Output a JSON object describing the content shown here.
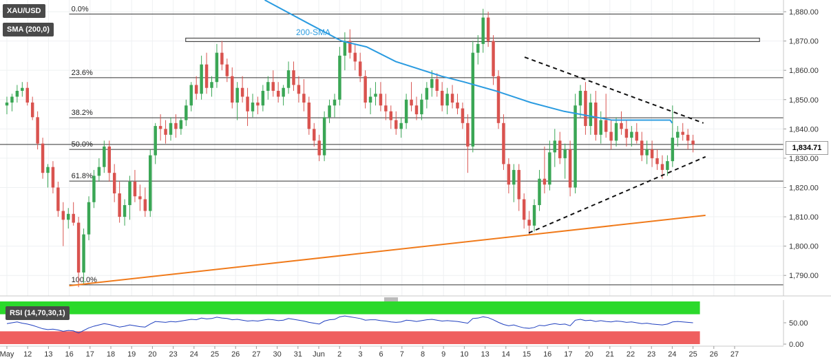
{
  "instrument": {
    "symbol": "XAU/USD",
    "indicator": "SMA (200,0)",
    "rsi_label": "RSI (14,70,30,1)",
    "sma_annotation": "200-SMA"
  },
  "last_price": "1,834.71",
  "colors": {
    "up": "#3aa655",
    "down": "#d9534f",
    "sma": "#2a9be0",
    "trend": "#f07a1a",
    "rsi_line": "#1f3fbf",
    "rsi_over": "#2bd92b",
    "rsi_under": "#ef5f5f"
  },
  "chart_data": [
    {
      "type": "candlestick",
      "title": "XAU/USD",
      "x_ticks": [
        "May",
        "12",
        "13",
        "16",
        "17",
        "18",
        "19",
        "20",
        "23",
        "24",
        "25",
        "26",
        "27",
        "30",
        "31",
        "Jun",
        "2",
        "3",
        "6",
        "7",
        "8",
        "9",
        "10",
        "13",
        "14",
        "15",
        "16",
        "17",
        "20",
        "21",
        "22",
        "23",
        "24",
        "25",
        "26",
        "27"
      ],
      "y_ticks": [
        "1,790.00",
        "1,800.00",
        "1,810.00",
        "1,820.00",
        "1,830.00",
        "1,840.00",
        "1,850.00",
        "1,860.00",
        "1,870.00",
        "1,880.00"
      ],
      "ylim": [
        1783,
        1884
      ],
      "fibonacci": [
        {
          "label": "0.0%",
          "value": 1879.2
        },
        {
          "label": "23.6%",
          "value": 1857.5
        },
        {
          "label": "38.2%",
          "value": 1843.8
        },
        {
          "label": "50.0%",
          "value": 1833.0
        },
        {
          "label": "61.8%",
          "value": 1822.2
        },
        {
          "label": "100.0%",
          "value": 1786.8
        }
      ],
      "resistance_zone": {
        "x": [
          8.6,
          36.2
        ],
        "low": 1869.8,
        "high": 1871.0
      },
      "sma_200": {
        "x": [
          12.4,
          14.5,
          16.1,
          17.3,
          18.7,
          20.9,
          22.0,
          23.5,
          25.2,
          26.8,
          29.1,
          31.9,
          32.0
        ],
        "y": [
          1884,
          1876,
          1870,
          1868,
          1863,
          1858,
          1856,
          1853,
          1849,
          1846,
          1843,
          1843,
          1842
        ]
      },
      "trendlines": [
        {
          "style": "solid",
          "color": "trend",
          "from": [
            3.0,
            1786.5
          ],
          "to": [
            33.6,
            1810.5
          ]
        },
        {
          "style": "dashed",
          "color": "black",
          "from": [
            24.9,
            1864.5
          ],
          "to": [
            33.5,
            1842.0
          ]
        },
        {
          "style": "dashed",
          "color": "black",
          "from": [
            25.1,
            1804.5
          ],
          "to": [
            33.6,
            1830.5
          ]
        }
      ],
      "candles": [
        [
          1848,
          1851,
          1845,
          1849
        ],
        [
          1849,
          1852,
          1846,
          1851
        ],
        [
          1851,
          1855,
          1849,
          1853
        ],
        [
          1853,
          1856,
          1851,
          1854
        ],
        [
          1854,
          1856,
          1848,
          1849
        ],
        [
          1849,
          1851,
          1843,
          1844
        ],
        [
          1844,
          1846,
          1833,
          1835
        ],
        [
          1835,
          1837,
          1823,
          1825
        ],
        [
          1825,
          1828,
          1820,
          1827
        ],
        [
          1827,
          1829,
          1818,
          1820
        ],
        [
          1820,
          1822,
          1810,
          1812
        ],
        [
          1812,
          1815,
          1800,
          1809
        ],
        [
          1809,
          1813,
          1806,
          1811
        ],
        [
          1811,
          1815,
          1807,
          1808
        ],
        [
          1808,
          1810,
          1786,
          1791
        ],
        [
          1791,
          1806,
          1787,
          1804
        ],
        [
          1804,
          1817,
          1802,
          1815
        ],
        [
          1815,
          1826,
          1813,
          1824
        ],
        [
          1824,
          1830,
          1822,
          1827
        ],
        [
          1827,
          1836,
          1825,
          1834
        ],
        [
          1834,
          1836,
          1822,
          1825
        ],
        [
          1825,
          1828,
          1815,
          1818
        ],
        [
          1818,
          1822,
          1808,
          1810
        ],
        [
          1810,
          1816,
          1807,
          1814
        ],
        [
          1814,
          1824,
          1809,
          1822
        ],
        [
          1822,
          1826,
          1815,
          1817
        ],
        [
          1817,
          1821,
          1812,
          1816
        ],
        [
          1816,
          1820,
          1810,
          1812
        ],
        [
          1812,
          1833,
          1810,
          1831
        ],
        [
          1831,
          1842,
          1828,
          1841
        ],
        [
          1841,
          1845,
          1836,
          1840
        ],
        [
          1840,
          1843,
          1835,
          1838
        ],
        [
          1838,
          1844,
          1836,
          1842
        ],
        [
          1842,
          1845,
          1837,
          1840
        ],
        [
          1840,
          1844,
          1838,
          1843
        ],
        [
          1843,
          1850,
          1841,
          1848
        ],
        [
          1848,
          1856,
          1846,
          1855
        ],
        [
          1855,
          1858,
          1850,
          1852
        ],
        [
          1852,
          1865,
          1850,
          1862
        ],
        [
          1862,
          1866,
          1852,
          1854
        ],
        [
          1854,
          1858,
          1851,
          1856
        ],
        [
          1856,
          1869,
          1854,
          1866
        ],
        [
          1866,
          1870,
          1860,
          1862
        ],
        [
          1862,
          1864,
          1856,
          1858
        ],
        [
          1858,
          1861,
          1847,
          1849
        ],
        [
          1849,
          1856,
          1843,
          1854
        ],
        [
          1854,
          1858,
          1849,
          1851
        ],
        [
          1851,
          1854,
          1841,
          1846
        ],
        [
          1846,
          1852,
          1844,
          1849
        ],
        [
          1849,
          1851,
          1845,
          1848
        ],
        [
          1848,
          1855,
          1846,
          1853
        ],
        [
          1853,
          1858,
          1850,
          1856
        ],
        [
          1856,
          1860,
          1851,
          1853
        ],
        [
          1853,
          1856,
          1849,
          1851
        ],
        [
          1851,
          1855,
          1848,
          1854
        ],
        [
          1854,
          1863,
          1852,
          1860
        ],
        [
          1860,
          1863,
          1853,
          1855
        ],
        [
          1855,
          1858,
          1849,
          1852
        ],
        [
          1852,
          1857,
          1846,
          1849
        ],
        [
          1849,
          1851,
          1838,
          1840
        ],
        [
          1840,
          1842,
          1834,
          1836
        ],
        [
          1836,
          1838,
          1829,
          1831
        ],
        [
          1831,
          1846,
          1829,
          1844
        ],
        [
          1844,
          1850,
          1842,
          1848
        ],
        [
          1848,
          1852,
          1844,
          1850
        ],
        [
          1850,
          1868,
          1848,
          1865
        ],
        [
          1865,
          1873,
          1860,
          1870
        ],
        [
          1870,
          1874,
          1864,
          1866
        ],
        [
          1866,
          1869,
          1860,
          1863
        ],
        [
          1863,
          1866,
          1856,
          1858
        ],
        [
          1858,
          1860,
          1847,
          1849
        ],
        [
          1849,
          1854,
          1845,
          1851
        ],
        [
          1851,
          1856,
          1848,
          1852
        ],
        [
          1852,
          1856,
          1846,
          1848
        ],
        [
          1848,
          1852,
          1843,
          1846
        ],
        [
          1846,
          1848,
          1840,
          1843
        ],
        [
          1843,
          1846,
          1838,
          1840
        ],
        [
          1840,
          1844,
          1837,
          1842
        ],
        [
          1842,
          1852,
          1840,
          1850
        ],
        [
          1850,
          1856,
          1846,
          1848
        ],
        [
          1848,
          1851,
          1843,
          1845
        ],
        [
          1845,
          1852,
          1843,
          1850
        ],
        [
          1850,
          1856,
          1847,
          1854
        ],
        [
          1854,
          1860,
          1851,
          1857
        ],
        [
          1857,
          1859,
          1851,
          1853
        ],
        [
          1853,
          1856,
          1846,
          1848
        ],
        [
          1848,
          1854,
          1845,
          1852
        ],
        [
          1852,
          1855,
          1847,
          1849
        ],
        [
          1849,
          1852,
          1845,
          1847
        ],
        [
          1847,
          1849,
          1840,
          1842
        ],
        [
          1842,
          1845,
          1825,
          1834
        ],
        [
          1834,
          1870,
          1832,
          1866
        ],
        [
          1866,
          1872,
          1862,
          1869
        ],
        [
          1869,
          1881,
          1866,
          1878
        ],
        [
          1878,
          1880,
          1868,
          1870
        ],
        [
          1870,
          1872,
          1855,
          1858
        ],
        [
          1858,
          1860,
          1840,
          1842
        ],
        [
          1842,
          1845,
          1826,
          1828
        ],
        [
          1828,
          1830,
          1818,
          1821
        ],
        [
          1821,
          1828,
          1815,
          1826
        ],
        [
          1826,
          1828,
          1812,
          1816
        ],
        [
          1816,
          1818,
          1806,
          1809
        ],
        [
          1809,
          1812,
          1804,
          1807
        ],
        [
          1807,
          1816,
          1805,
          1814
        ],
        [
          1814,
          1826,
          1812,
          1823
        ],
        [
          1823,
          1834,
          1818,
          1821
        ],
        [
          1821,
          1836,
          1819,
          1832
        ],
        [
          1832,
          1840,
          1827,
          1836
        ],
        [
          1836,
          1839,
          1828,
          1830
        ],
        [
          1830,
          1835,
          1823,
          1833
        ],
        [
          1833,
          1836,
          1817,
          1820
        ],
        [
          1820,
          1852,
          1818,
          1848
        ],
        [
          1848,
          1855,
          1844,
          1853
        ],
        [
          1853,
          1856,
          1838,
          1841
        ],
        [
          1841,
          1852,
          1838,
          1849
        ],
        [
          1849,
          1853,
          1836,
          1838
        ],
        [
          1838,
          1846,
          1835,
          1843
        ],
        [
          1843,
          1852,
          1837,
          1839
        ],
        [
          1839,
          1843,
          1833,
          1836
        ],
        [
          1836,
          1844,
          1834,
          1842
        ],
        [
          1842,
          1846,
          1838,
          1840
        ],
        [
          1840,
          1843,
          1834,
          1837
        ],
        [
          1837,
          1841,
          1834,
          1839
        ],
        [
          1839,
          1842,
          1835,
          1836
        ],
        [
          1836,
          1839,
          1829,
          1831
        ],
        [
          1831,
          1836,
          1828,
          1833
        ],
        [
          1833,
          1836,
          1827,
          1830
        ],
        [
          1830,
          1833,
          1826,
          1828
        ],
        [
          1828,
          1831,
          1823,
          1826
        ],
        [
          1826,
          1831,
          1824,
          1829
        ],
        [
          1829,
          1848,
          1827,
          1837
        ],
        [
          1837,
          1841,
          1834,
          1839
        ],
        [
          1839,
          1842,
          1836,
          1838
        ],
        [
          1838,
          1840,
          1833,
          1836
        ],
        [
          1836,
          1838,
          1832,
          1834.71
        ]
      ]
    },
    {
      "type": "line",
      "title": "RSI (14,70,30,1)",
      "y_ticks": [
        "0.00",
        "50.00"
      ],
      "ylim": [
        0,
        100
      ],
      "overbought": 70,
      "oversold": 30,
      "series": [
        {
          "values": [
            48,
            50,
            52,
            49,
            47,
            44,
            40,
            36,
            34,
            35,
            33,
            30,
            32,
            31,
            26,
            32,
            38,
            42,
            45,
            48,
            46,
            43,
            40,
            42,
            45,
            43,
            41,
            40,
            47,
            53,
            52,
            51,
            53,
            52,
            54,
            56,
            58,
            57,
            61,
            59,
            60,
            63,
            61,
            60,
            57,
            58,
            56,
            54,
            55,
            54,
            56,
            58,
            57,
            55,
            56,
            60,
            58,
            56,
            54,
            51,
            49,
            47,
            54,
            57,
            58,
            64,
            66,
            64,
            62,
            60,
            56,
            57,
            57,
            55,
            54,
            52,
            51,
            52,
            56,
            55,
            53,
            55,
            57,
            58,
            56,
            54,
            55,
            54,
            53,
            51,
            49,
            60,
            61,
            64,
            62,
            57,
            51,
            46,
            43,
            45,
            41,
            38,
            37,
            39,
            44,
            43,
            46,
            48,
            46,
            47,
            43,
            56,
            58,
            55,
            56,
            53,
            55,
            53,
            52,
            54,
            53,
            51,
            52,
            50,
            48,
            49,
            47,
            46,
            45,
            47,
            52,
            53,
            52,
            51,
            50
          ]
        }
      ]
    }
  ]
}
